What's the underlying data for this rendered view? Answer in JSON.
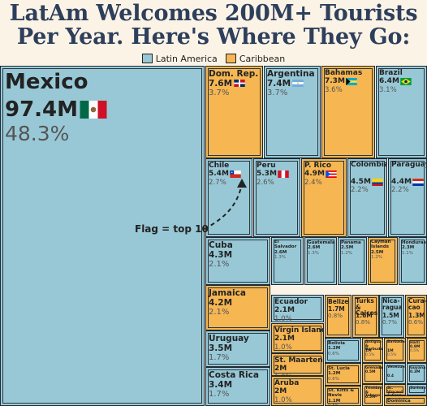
{
  "title_line1": "LatAm Welcomes 200M+ Tourists",
  "title_line2": "Per Year. Here's Where They Go:",
  "legend": [
    {
      "label": "Latin America",
      "color": "#98c8d6"
    },
    {
      "label": "Caribbean",
      "color": "#f6b652"
    }
  ],
  "annotation": "Flag = top 10",
  "chart_data": {
    "type": "treemap",
    "colors": {
      "Latin America": "#98c8d6",
      "Caribbean": "#f6b652"
    },
    "nodes": [
      {
        "name": "Mexico",
        "value_label": "97.4M",
        "pct_label": "48.3%",
        "value": 97.4,
        "pct": 48.3,
        "region": "Latin America",
        "flag": "mexico"
      },
      {
        "name": "Dom. Rep.",
        "value_label": "7.6M",
        "pct_label": "3.7%",
        "value": 7.6,
        "pct": 3.7,
        "region": "Caribbean",
        "flag": "domrep"
      },
      {
        "name": "Argentina",
        "value_label": "7.4M",
        "pct_label": "3.7%",
        "value": 7.4,
        "pct": 3.7,
        "region": "Latin America",
        "flag": "argentina"
      },
      {
        "name": "Bahamas",
        "value_label": "7.3M",
        "pct_label": "3.6%",
        "value": 7.3,
        "pct": 3.6,
        "region": "Caribbean",
        "flag": "bahamas"
      },
      {
        "name": "Brazil",
        "value_label": "6.4M",
        "pct_label": "3.1%",
        "value": 6.4,
        "pct": 3.1,
        "region": "Latin America",
        "flag": "brazil"
      },
      {
        "name": "Chile",
        "value_label": "5.4M",
        "pct_label": "2.7%",
        "value": 5.4,
        "pct": 2.7,
        "region": "Latin America",
        "flag": "chile"
      },
      {
        "name": "Peru",
        "value_label": "5.3M",
        "pct_label": "2.6%",
        "value": 5.3,
        "pct": 2.6,
        "region": "Latin America",
        "flag": "peru"
      },
      {
        "name": "P. Rico",
        "value_label": "4.9M",
        "pct_label": "2.4%",
        "value": 4.9,
        "pct": 2.4,
        "region": "Caribbean",
        "flag": "prico"
      },
      {
        "name": "Colombia",
        "value_label": "4.5M",
        "pct_label": "2.2%",
        "value": 4.5,
        "pct": 2.2,
        "region": "Latin America",
        "flag": "colombia"
      },
      {
        "name": "Paraguay",
        "value_label": "4.4M",
        "pct_label": "2.2%",
        "value": 4.4,
        "pct": 2.2,
        "region": "Latin America",
        "flag": "paraguay"
      },
      {
        "name": "Cuba",
        "value_label": "4.3M",
        "pct_label": "2.1%",
        "value": 4.3,
        "pct": 2.1,
        "region": "Latin America"
      },
      {
        "name": "El Salvador",
        "value_label": "2.6M",
        "pct_label": "1.3%",
        "value": 2.6,
        "pct": 1.3,
        "region": "Latin America"
      },
      {
        "name": "Guatemala",
        "value_label": "2.6M",
        "pct_label": "1.3%",
        "value": 2.6,
        "pct": 1.3,
        "region": "Latin America"
      },
      {
        "name": "Panama",
        "value_label": "2.5M",
        "pct_label": "1.2%",
        "value": 2.5,
        "pct": 1.2,
        "region": "Latin America"
      },
      {
        "name": "Cayman Islands",
        "value_label": "2.5M",
        "pct_label": "1.2%",
        "value": 2.5,
        "pct": 1.2,
        "region": "Caribbean"
      },
      {
        "name": "Honduras",
        "value_label": "2.3M",
        "pct_label": "1.1%",
        "value": 2.3,
        "pct": 1.1,
        "region": "Latin America"
      },
      {
        "name": "Jamaica",
        "value_label": "4.2M",
        "pct_label": "2.1%",
        "value": 4.2,
        "pct": 2.1,
        "region": "Caribbean"
      },
      {
        "name": "Ecuador",
        "value_label": "2.1M",
        "pct_label": "1.0%",
        "value": 2.1,
        "pct": 1.0,
        "region": "Latin America"
      },
      {
        "name": "Belize",
        "value_label": "1.7M",
        "pct_label": "0.8%",
        "value": 1.7,
        "pct": 0.8,
        "region": "Caribbean"
      },
      {
        "name": "Turks & Caicos",
        "value_label": "1.6M",
        "pct_label": "0.8%",
        "value": 1.6,
        "pct": 0.8,
        "region": "Caribbean"
      },
      {
        "name": "Nica-ragua",
        "value_label": "1.5M",
        "pct_label": "0.7%",
        "value": 1.5,
        "pct": 0.7,
        "region": "Latin America"
      },
      {
        "name": "Cura-cao",
        "value_label": "1.3M",
        "pct_label": "0.6%",
        "value": 1.3,
        "pct": 0.6,
        "region": "Caribbean"
      },
      {
        "name": "Virgin Islands",
        "value_label": "2.1M",
        "pct_label": "1.0%",
        "value": 2.1,
        "pct": 1.0,
        "region": "Caribbean"
      },
      {
        "name": "Uruguay",
        "value_label": "3.5M",
        "pct_label": "1.7%",
        "value": 3.5,
        "pct": 1.7,
        "region": "Latin America"
      },
      {
        "name": "Bolivia",
        "value_label": "1.2M",
        "pct_label": "0.6%",
        "value": 1.2,
        "pct": 0.6,
        "region": "Latin America"
      },
      {
        "name": "Antigua & Barbuda",
        "value_label": "1M",
        "pct_label": "0.5%",
        "value": 1.0,
        "pct": 0.5,
        "region": "Caribbean"
      },
      {
        "name": "Barbados",
        "value_label": "1M",
        "pct_label": "0.5%",
        "value": 1.0,
        "pct": 0.5,
        "region": "Caribbean"
      },
      {
        "name": "Haiti",
        "value_label": "0.9M",
        "pct_label": "0.5%",
        "value": 0.9,
        "pct": 0.5,
        "region": "Caribbean"
      },
      {
        "name": "St. Maarten",
        "value_label": "2M",
        "pct_label": "1.0%",
        "value": 2.0,
        "pct": 1.0,
        "region": "Caribbean"
      },
      {
        "name": "St. Lucia",
        "value_label": "1.2M",
        "pct_label": "0.6%",
        "value": 1.2,
        "pct": 0.6,
        "region": "Caribbean"
      },
      {
        "name": "Grenada",
        "value_label": "0.5M",
        "pct_label": "",
        "value": 0.5,
        "pct": null,
        "region": "Caribbean"
      },
      {
        "name": "Venezuela",
        "value_label": "0.4",
        "pct_label": "",
        "value": 0.4,
        "pct": null,
        "region": "Latin America"
      },
      {
        "name": "Guyana",
        "value_label": "0.3M",
        "pct_label": "",
        "value": 0.3,
        "pct": null,
        "region": "Latin America"
      },
      {
        "name": "Costa Rica",
        "value_label": "3.4M",
        "pct_label": "1.7%",
        "value": 3.4,
        "pct": 1.7,
        "region": "Latin America"
      },
      {
        "name": "Aruba",
        "value_label": "2M",
        "pct_label": "1.0%",
        "value": 2.0,
        "pct": 1.0,
        "region": "Caribbean"
      },
      {
        "name": "St. Kitts & Nevis",
        "value_label": "1.1M",
        "pct_label": "0.5%",
        "value": 1.1,
        "pct": 0.5,
        "region": "Caribbean"
      },
      {
        "name": "Trinidad & Tobago",
        "value_label": "0.5M",
        "pct_label": "",
        "value": 0.5,
        "pct": null,
        "region": "Caribbean"
      },
      {
        "name": "St. Vincent & Gren.",
        "value_label": "",
        "pct_label": "",
        "value": null,
        "pct": null,
        "region": "Caribbean"
      },
      {
        "name": "Suriname",
        "value_label": "0.3M",
        "pct_label": "",
        "value": 0.3,
        "pct": null,
        "region": "Latin America"
      },
      {
        "name": "Dominica",
        "value_label": "",
        "pct_label": "",
        "value": null,
        "pct": null,
        "region": "Caribbean"
      }
    ]
  }
}
